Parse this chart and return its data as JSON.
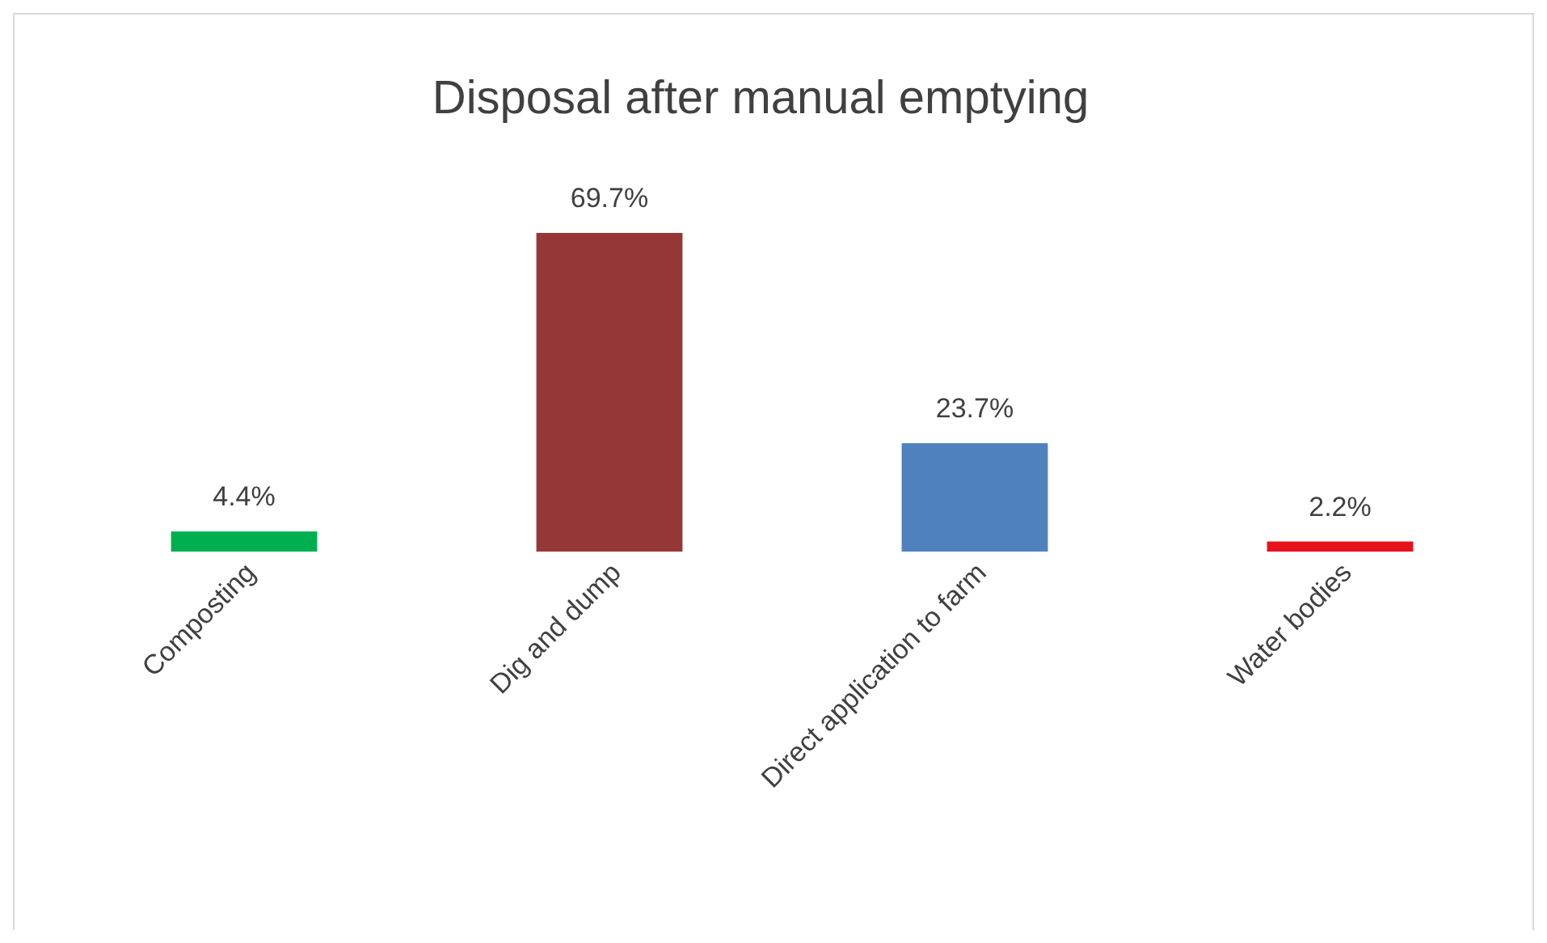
{
  "chart_data": {
    "type": "bar",
    "title": "Disposal after manual emptying",
    "categories": [
      "Composting",
      "Dig and dump",
      "Direct application to farm",
      "Water bodies"
    ],
    "values": [
      4.4,
      69.7,
      23.7,
      2.2
    ],
    "colors": [
      "#00b050",
      "#953735",
      "#4f81bd",
      "#e6111b"
    ],
    "value_labels": [
      "4.4%",
      "69.7%",
      "23.7%",
      "2.2%"
    ]
  }
}
